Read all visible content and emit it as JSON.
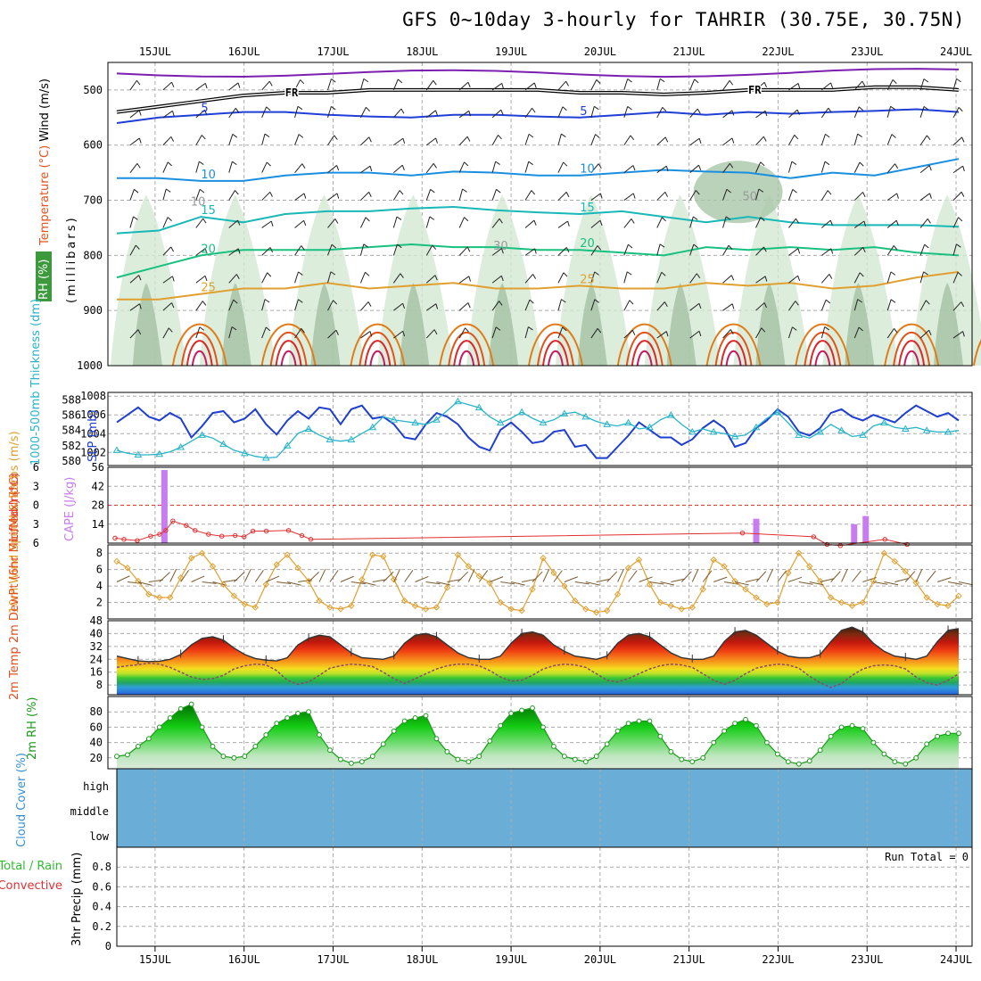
{
  "title": "GFS 0~10day 3-hourly for TAHRIR (30.75E, 30.75N)",
  "chart_data": {
    "type": "meteogram",
    "date_labels": [
      "15JUL",
      "16JUL",
      "17JUL",
      "18JUL",
      "19JUL",
      "20JUL",
      "21JUL",
      "22JUL",
      "23JUL",
      "24JUL"
    ],
    "time_span_days": [
      -0.53,
      9.18
    ],
    "upper_air": {
      "ylabel_parts": {
        "wind": "Wind (m/s)",
        "temp": "Temperature (°C)",
        "rh": "RH (%)",
        "pressure": "(millibars)"
      },
      "y_ticks": [
        500,
        600,
        700,
        800,
        900,
        1000
      ],
      "ylim": [
        1000,
        450
      ],
      "fr_label": "FR",
      "temp_isotherms": [
        {
          "label": "5",
          "level": [
            560,
            550,
            545,
            540,
            540,
            545,
            548,
            550,
            545,
            545,
            548,
            550,
            545,
            540,
            545,
            540,
            543,
            540,
            538,
            535,
            540
          ]
        },
        {
          "label": "10",
          "level": [
            660,
            660,
            665,
            665,
            655,
            650,
            650,
            655,
            648,
            650,
            655,
            655,
            650,
            645,
            648,
            650,
            660,
            650,
            655,
            640,
            625
          ]
        },
        {
          "label": "15",
          "level": [
            760,
            755,
            730,
            740,
            725,
            720,
            720,
            715,
            712,
            718,
            722,
            725,
            720,
            730,
            740,
            730,
            740,
            745,
            745,
            745,
            748
          ]
        },
        {
          "label": "20",
          "level": [
            840,
            820,
            800,
            790,
            790,
            790,
            785,
            780,
            785,
            785,
            790,
            790,
            795,
            800,
            785,
            790,
            785,
            790,
            785,
            795,
            800
          ]
        },
        {
          "label": "25",
          "level": [
            880,
            880,
            870,
            860,
            860,
            850,
            860,
            855,
            850,
            860,
            860,
            855,
            860,
            860,
            850,
            855,
            850,
            860,
            855,
            840,
            830
          ]
        }
      ],
      "fr_level": [
        540,
        530,
        520,
        510,
        505,
        505,
        500,
        500,
        500,
        500,
        500,
        505,
        505,
        508,
        505,
        500,
        500,
        500,
        495,
        495,
        500
      ],
      "rh_contour_labels": [
        "10",
        "30",
        "50"
      ]
    },
    "slp_thickness": {
      "left_axis_label": "1000-500mb Thickness (dm)",
      "right_axis_label": "SLP (mb)",
      "thickness_ticks": [
        580,
        582,
        584,
        586,
        588
      ],
      "slp_ticks": [
        1002,
        1004,
        1006,
        1008
      ],
      "slp_mb": [
        1005.2,
        1006.0,
        1006.8,
        1005.8,
        1005.4,
        1006.2,
        1005.6,
        1003.6,
        1004.8,
        1006.2,
        1006.4,
        1005.2,
        1005.6,
        1006.6,
        1005.0,
        1003.9,
        1005.4,
        1006.4,
        1005.6,
        1006.8,
        1006.6,
        1005.0,
        1006.6,
        1007.0,
        1005.6,
        1005.8,
        1005.0,
        1003.6,
        1003.4,
        1005.0,
        1006.2,
        1005.8,
        1005.0,
        1003.6,
        1002.6,
        1002.2,
        1004.4,
        1005.2,
        1004.2,
        1003.0,
        1003.2,
        1004.2,
        1004.4,
        1002.6,
        1002.8,
        1001.4,
        1001.4,
        1002.6,
        1003.8,
        1005.2,
        1004.4,
        1003.6,
        1003.6,
        1002.8,
        1003.4,
        1004.6,
        1005.4,
        1004.6,
        1002.6,
        1003.0,
        1004.6,
        1005.4,
        1006.6,
        1005.8,
        1004.2,
        1003.8,
        1004.6,
        1006.2,
        1006.6,
        1005.8,
        1005.4,
        1006.0,
        1005.6,
        1005.2,
        1006.2,
        1007.0,
        1006.4,
        1005.8,
        1006.2,
        1005.4
      ],
      "thickness_dm": [
        581.4,
        581.0,
        580.8,
        580.8,
        580.9,
        581.2,
        581.8,
        582.6,
        583.4,
        583.0,
        582.2,
        581.4,
        581.0,
        580.6,
        580.4,
        580.5,
        582.0,
        583.6,
        584.2,
        583.4,
        582.8,
        582.6,
        582.8,
        583.6,
        584.4,
        585.8,
        585.4,
        585.2,
        585.0,
        584.8,
        585.4,
        586.6,
        587.8,
        587.4,
        587.0,
        585.8,
        585.0,
        585.6,
        586.4,
        585.6,
        585.0,
        585.4,
        586.2,
        586.4,
        585.8,
        585.2,
        584.8,
        584.6,
        585.0,
        584.2,
        584.4,
        585.4,
        586.0,
        584.8,
        583.8,
        584.2,
        583.8,
        583.6,
        583.2,
        583.4,
        584.4,
        585.6,
        586.4,
        585.0,
        583.4,
        583.0,
        583.8,
        584.8,
        584.0,
        583.2,
        583.4,
        584.6,
        585.0,
        584.4,
        584.2,
        584.4,
        584.0,
        583.8,
        583.8,
        584.0
      ]
    },
    "cape_li": {
      "li_label": "Lifted Index",
      "cape_label": "CAPE (J/kg)",
      "li_ticks": [
        6,
        3,
        0,
        -3,
        -6
      ],
      "cape_ticks": [
        14,
        28,
        42,
        56
      ],
      "cape_bars": [
        {
          "day": 0.1,
          "value": 54
        },
        {
          "day": 6.75,
          "value": 18
        },
        {
          "day": 7.85,
          "value": 14
        },
        {
          "day": 7.98,
          "value": 20
        }
      ],
      "li_series": [
        5.2,
        5.4,
        5.6,
        4.9,
        4.6,
        4.0,
        2.5,
        3.2,
        4.0,
        4.6,
        4.9,
        4.8,
        5.0,
        4.1,
        4.1,
        4.0,
        4.8,
        5.4,
        4.4,
        5.0,
        6.2,
        6.4,
        5.4,
        6.2
      ]
    },
    "wind10m": {
      "ylabel": "10m Wind Speed & Barbs (m/s)",
      "y_ticks": [
        2,
        4,
        6,
        8
      ],
      "speed": [
        7.0,
        6.2,
        4.6,
        3.0,
        2.6,
        2.6,
        5.0,
        7.4,
        8.0,
        6.4,
        4.2,
        2.8,
        1.8,
        1.4,
        4.2,
        6.6,
        7.8,
        6.2,
        4.6,
        2.2,
        1.4,
        1.2,
        1.6,
        4.8,
        7.8,
        7.6,
        4.8,
        2.2,
        1.6,
        1.2,
        1.4,
        3.8,
        7.8,
        6.4,
        5.2,
        4.4,
        2.0,
        1.2,
        1.0,
        3.6,
        7.4,
        5.6,
        4.0,
        2.2,
        1.2,
        0.8,
        1.0,
        3.0,
        6.2,
        7.2,
        4.2,
        2.0,
        1.6,
        1.2,
        1.4,
        3.6,
        7.2,
        6.4,
        4.6,
        3.6,
        2.6,
        1.8,
        2.0,
        5.6,
        8.0,
        6.4,
        4.6,
        2.6,
        2.0,
        1.6,
        2.0,
        4.6,
        8.0,
        7.0,
        5.8,
        4.4,
        2.6,
        1.8,
        1.6,
        2.8
      ]
    },
    "temp2m": {
      "ylabel": "2m Temp 2m DewPt (6hr Min/Max) (°C)",
      "y_ticks": [
        8,
        16,
        24,
        32,
        40,
        48
      ],
      "temp_c": [
        26.0,
        24.5,
        23.0,
        22.6,
        22.8,
        24.0,
        27.0,
        33.0,
        37.0,
        38.0,
        36.0,
        31.0,
        27.0,
        24.5,
        23.5,
        23.0,
        25.0,
        33.0,
        37.0,
        39.0,
        38.0,
        33.0,
        28.0,
        25.0,
        24.5,
        24.0,
        26.0,
        34.0,
        39.0,
        40.0,
        38.0,
        33.0,
        28.0,
        25.0,
        24.0,
        24.0,
        26.0,
        34.0,
        40.0,
        41.0,
        39.0,
        33.0,
        29.0,
        26.0,
        25.0,
        24.0,
        26.0,
        34.0,
        39.0,
        40.0,
        38.0,
        33.0,
        28.0,
        25.0,
        24.0,
        24.0,
        26.0,
        35.0,
        41.0,
        42.0,
        39.0,
        34.0,
        29.0,
        26.0,
        25.0,
        25.0,
        27.0,
        35.0,
        42.0,
        44.0,
        41.0,
        34.0,
        29.0,
        26.0,
        25.0,
        24.0,
        26.0,
        35.0,
        42.0,
        43.0
      ],
      "dewpt_c": [
        19.0,
        20.0,
        20.6,
        21.6,
        21.0,
        19.0,
        16.0,
        13.0,
        11.5,
        12.0,
        14.0,
        18.0,
        20.0,
        21.0,
        20.5,
        17.0,
        11.0,
        8.5,
        10.0,
        14.0,
        18.5,
        20.0,
        21.0,
        20.5,
        19.5,
        16.0,
        12.0,
        9.0,
        12.0,
        15.0,
        18.0,
        20.0,
        21.0,
        21.0,
        20.0,
        17.0,
        13.0,
        10.5,
        11.0,
        14.0,
        18.0,
        20.0,
        21.0,
        20.5,
        19.0,
        15.0,
        11.0,
        10.0,
        12.0,
        15.0,
        18.0,
        20.0,
        21.0,
        20.5,
        19.0,
        15.0,
        11.0,
        8.5,
        11.0,
        15.0,
        18.5,
        20.0,
        21.0,
        20.5,
        18.5,
        13.5,
        9.5,
        6.5,
        9.0,
        14.0,
        18.0,
        20.0,
        20.5,
        20.0,
        18.0,
        13.0,
        9.5,
        8.0,
        11.0,
        15.0
      ]
    },
    "rh2m": {
      "ylabel": "2m RH (%)",
      "y_ticks": [
        20,
        40,
        60,
        80
      ],
      "rh_pct": [
        22,
        24,
        35,
        45,
        60,
        72,
        84,
        90,
        60,
        35,
        22,
        20,
        22,
        35,
        50,
        65,
        72,
        78,
        80,
        50,
        30,
        18,
        13,
        15,
        22,
        38,
        55,
        68,
        72,
        75,
        45,
        28,
        18,
        15,
        22,
        42,
        62,
        78,
        82,
        85,
        60,
        35,
        22,
        18,
        15,
        22,
        38,
        55,
        65,
        68,
        68,
        48,
        28,
        18,
        15,
        20,
        40,
        55,
        65,
        70,
        62,
        40,
        25,
        15,
        12,
        16,
        30,
        48,
        60,
        62,
        58,
        40,
        25,
        15,
        12,
        20,
        38,
        48,
        52,
        52
      ]
    },
    "cloud": {
      "ylabel": "Cloud Cover (%)",
      "levels": [
        "high",
        "middle",
        "low"
      ]
    },
    "precip": {
      "left_label_top": "Total / Rain",
      "left_label_bottom": "Convective",
      "ylabel": "3hr Precip (mm)",
      "y_ticks": [
        "0",
        "0.2",
        "0.4",
        "0.6",
        "0.8"
      ],
      "run_total": "Run Total = 0"
    }
  }
}
